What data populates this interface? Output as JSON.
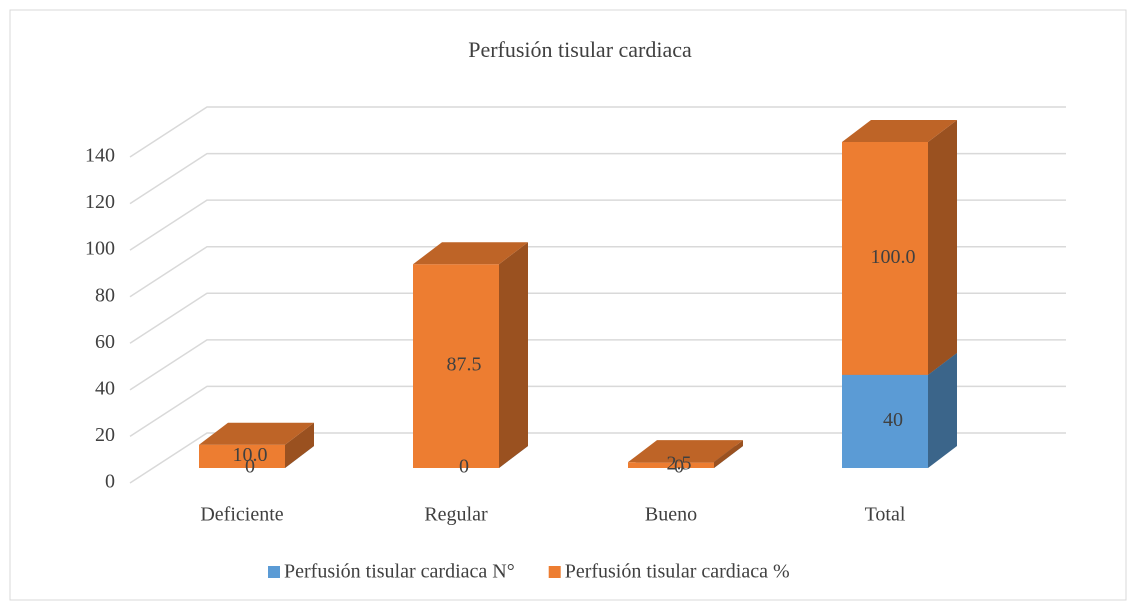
{
  "chart_data": {
    "type": "bar3d_stacked",
    "title": "Perfusión tisular cardiaca",
    "categories": [
      "Deficiente",
      "Regular",
      "Bueno",
      "Total"
    ],
    "series": [
      {
        "name": "Perfusión tisular cardiaca N°",
        "color": "#5b9bd5",
        "values": [
          0,
          0,
          0,
          40
        ]
      },
      {
        "name": "Perfusión tisular cardiaca %",
        "color": "#ed7d31",
        "values": [
          10,
          87.5,
          2.5,
          100
        ],
        "value_labels": [
          "10.0",
          "87.5",
          "2.5",
          "100.0"
        ]
      }
    ],
    "ylim": [
      0,
      140
    ],
    "yticks": [
      0,
      20,
      40,
      60,
      80,
      100,
      120,
      140
    ],
    "grid": true,
    "legend": "bottom"
  }
}
